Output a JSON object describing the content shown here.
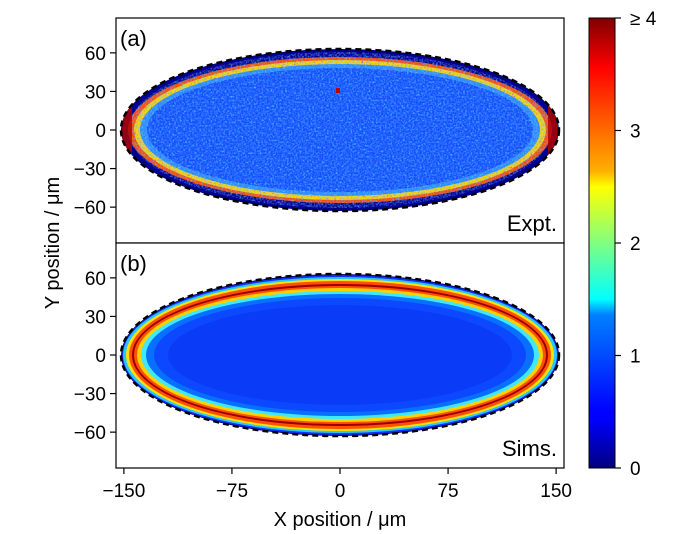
{
  "chart_data": [
    {
      "type": "heatmap",
      "panel_label": "(a)",
      "corner_label": "Expt.",
      "xlim": [
        -155,
        155
      ],
      "ylim": [
        -75,
        75
      ],
      "x_ticks": [
        -150,
        -75,
        0,
        75,
        150
      ],
      "y_ticks": [
        60,
        30,
        0,
        -30,
        -60
      ],
      "y_tick_labels": [
        "60",
        "30",
        "0",
        "−30",
        "−60"
      ],
      "boundary": {
        "shape": "ellipse",
        "semi_axis_x": 152,
        "semi_axis_y": 63,
        "style": "dashed"
      },
      "pattern": "noisy, mostly ~0.8, bright ring near boundary",
      "grid": false
    },
    {
      "type": "heatmap",
      "panel_label": "(b)",
      "corner_label": "Sims.",
      "xlim": [
        -155,
        155
      ],
      "ylim": [
        -75,
        75
      ],
      "x_ticks": [
        -150,
        -75,
        0,
        75,
        150
      ],
      "x_tick_labels": [
        "−150",
        "−75",
        "0",
        "75",
        "150"
      ],
      "y_ticks": [
        60,
        30,
        0,
        -30,
        -60
      ],
      "y_tick_labels": [
        "60",
        "30",
        "0",
        "−30",
        "−60"
      ],
      "boundary": {
        "shape": "ellipse",
        "semi_axis_x": 152,
        "semi_axis_y": 63,
        "style": "dashed"
      },
      "pattern": "smooth, ~0.8 interior, sharp ring of value ≥4 near boundary",
      "grid": false
    }
  ],
  "axes": {
    "xlabel": "X position / μm",
    "ylabel": "Y position / μm"
  },
  "colorbar": {
    "colormap": "jet",
    "range": [
      0,
      4
    ],
    "ticks": [
      0,
      1,
      2,
      3,
      4
    ],
    "tick_labels": [
      "0",
      "1",
      "2",
      "3",
      "≥ 4"
    ]
  }
}
